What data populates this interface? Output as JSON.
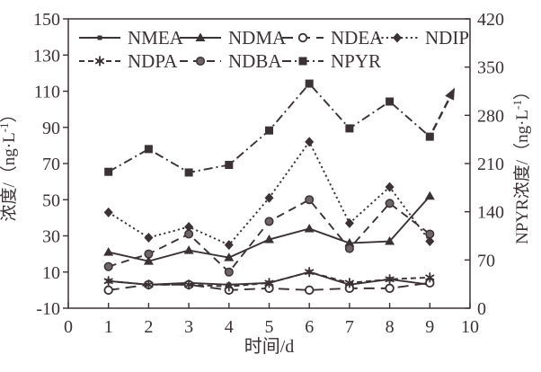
{
  "figure": {
    "background": "#ffffff",
    "ink_color": "#3a3234",
    "gray_fill": "#6e6668"
  },
  "chart_data": {
    "type": "line",
    "x": [
      1,
      2,
      3,
      4,
      5,
      6,
      7,
      8,
      9
    ],
    "xlabel": "时间/d",
    "ylabel_left": "浓度/（ng·L⁻¹）",
    "ylabel_right": "NPYR浓度/（ng·L⁻¹）",
    "x_axis": {
      "min": 0,
      "max": 10,
      "ticks": [
        0,
        1,
        2,
        3,
        4,
        5,
        6,
        7,
        8,
        9,
        10
      ]
    },
    "left_axis": {
      "min": -10,
      "max": 150,
      "ticks": [
        -10,
        10,
        30,
        50,
        70,
        90,
        110,
        130,
        150
      ]
    },
    "right_axis": {
      "min": 0,
      "max": 420,
      "ticks": [
        0,
        70,
        140,
        210,
        280,
        350,
        420
      ]
    },
    "grid": false,
    "legend_position": "top-inside-two-rows",
    "legend_rows": [
      [
        "NMEA",
        "NDMA",
        "NDEA",
        "NDIP"
      ],
      [
        "NDPA",
        "NDBA",
        "NPYR"
      ]
    ],
    "series": [
      {
        "name": "NMEA",
        "axis": "left",
        "line": "solid",
        "marker": "small-square",
        "values": [
          5,
          3,
          4,
          3,
          4,
          10,
          3,
          6,
          3
        ]
      },
      {
        "name": "NDMA",
        "axis": "left",
        "line": "solid",
        "marker": "triangle",
        "values": [
          21,
          16,
          22,
          18,
          28,
          34,
          26,
          27,
          52
        ]
      },
      {
        "name": "NDEA",
        "axis": "left",
        "line": "long-dash",
        "marker": "open-circle",
        "values": [
          0,
          3,
          3,
          0,
          1,
          0,
          1,
          1,
          4
        ]
      },
      {
        "name": "NDIP",
        "axis": "left",
        "line": "dotted",
        "marker": "diamond",
        "values": [
          43,
          29,
          35,
          25,
          51,
          82,
          37,
          57,
          27
        ]
      },
      {
        "name": "NDPA",
        "axis": "left",
        "line": "short-dash",
        "marker": "star",
        "values": [
          5,
          3,
          3,
          2,
          4,
          10,
          4,
          6,
          7
        ]
      },
      {
        "name": "NDBA",
        "axis": "left",
        "line": "dash",
        "marker": "gray-circle",
        "values": [
          13,
          20,
          31,
          10,
          38,
          50,
          23,
          48,
          31
        ]
      },
      {
        "name": "NPYR",
        "axis": "right",
        "line": "dash-dot",
        "marker": "square",
        "values": [
          198,
          231,
          197,
          208,
          258,
          326,
          261,
          300,
          249
        ],
        "trend_arrow": {
          "x": 9.62,
          "value": 320
        }
      }
    ]
  }
}
